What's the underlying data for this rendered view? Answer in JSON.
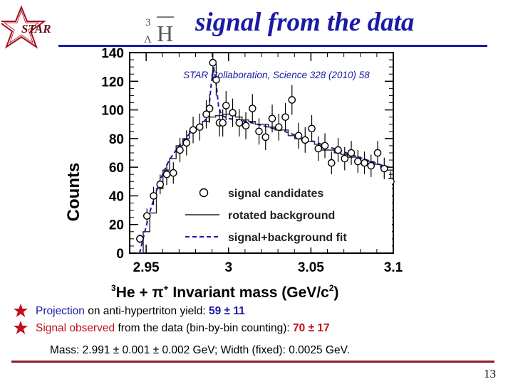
{
  "logo": {
    "text": "STAR"
  },
  "title": {
    "symbol_sup": "3",
    "symbol_sub": "Λ",
    "symbol_main": "H",
    "text": "signal from the data"
  },
  "citation": "STAR Collaboration, Science 328 (2010) 58",
  "chart_data": {
    "type": "scatter",
    "xlabel_prefix_sup": "3",
    "xlabel_he": "He + π",
    "xlabel_pi_sup": "+",
    "xlabel_rest": " Invariant mass (GeV/c",
    "xlabel_c_sup": "2",
    "xlabel_end": ")",
    "ylabel": "Counts",
    "xlim": [
      2.94,
      3.1
    ],
    "ylim": [
      0,
      140
    ],
    "xticks": [
      2.95,
      3.0,
      3.05,
      3.1
    ],
    "xtick_labels": [
      "2.95",
      "3",
      "3.05",
      "3.1"
    ],
    "yticks": [
      0,
      20,
      40,
      60,
      80,
      100,
      120,
      140
    ],
    "ytick_labels": [
      "0",
      "20",
      "40",
      "60",
      "80",
      "100",
      "120",
      "140"
    ],
    "legend": {
      "placement": "center-right",
      "entries": [
        "signal candidates",
        "rotated background",
        "signal+background fit"
      ]
    },
    "series": [
      {
        "name": "signal candidates",
        "style": "open circles with error bars",
        "x": [
          2.9462,
          2.9505,
          2.9545,
          2.9585,
          2.9625,
          2.9665,
          2.9705,
          2.9745,
          2.9785,
          2.9825,
          2.9865,
          2.9885,
          2.9905,
          2.9925,
          2.9945,
          2.9965,
          2.9985,
          3.0025,
          3.0065,
          3.0105,
          3.0145,
          3.0185,
          3.0225,
          3.0265,
          3.0305,
          3.0345,
          3.0385,
          3.0425,
          3.0465,
          3.0505,
          3.0545,
          3.0585,
          3.0625,
          3.0665,
          3.0705,
          3.0745,
          3.0785,
          3.0825,
          3.0865,
          3.0905,
          3.0945,
          3.0985
        ],
        "y": [
          10,
          26,
          40,
          48,
          55,
          56,
          72,
          77,
          86,
          88,
          97,
          101,
          133,
          121,
          91,
          91,
          103,
          98,
          91,
          89,
          101,
          85,
          81,
          94,
          88,
          95,
          107,
          82,
          79,
          87,
          73,
          75,
          63,
          72,
          66,
          70,
          64,
          63,
          61,
          70,
          59,
          50
        ]
      },
      {
        "name": "rotated background",
        "style": "step line",
        "x": [
          2.9442,
          2.9482,
          2.9522,
          2.9562,
          2.9602,
          2.9642,
          2.9682,
          2.9722,
          2.9762,
          2.9802,
          2.9842,
          2.9882,
          2.9922,
          2.9962,
          3.0002,
          3.0042,
          3.0082,
          3.0122,
          3.0162,
          3.0202,
          3.0242,
          3.0282,
          3.0322,
          3.0362,
          3.0402,
          3.0442,
          3.0482,
          3.0522,
          3.0562,
          3.0602,
          3.0642,
          3.0682,
          3.0722,
          3.0762,
          3.0802,
          3.0842,
          3.0882,
          3.0922,
          3.0962,
          3.1002
        ],
        "y": [
          0,
          15,
          28,
          45,
          58,
          66,
          75,
          80,
          85,
          88,
          92,
          95,
          96,
          97,
          97,
          95,
          93,
          92,
          90,
          90,
          88,
          86,
          86,
          82,
          80,
          79,
          78,
          76,
          72,
          72,
          70,
          69,
          67,
          67,
          64,
          64,
          62,
          60,
          58,
          58
        ]
      },
      {
        "name": "signal+background fit",
        "style": "dashed line",
        "x": [
          2.946,
          2.952,
          2.958,
          2.964,
          2.97,
          2.976,
          2.98,
          2.984,
          2.986,
          2.988,
          2.9895,
          2.991,
          2.9925,
          2.994,
          2.996,
          3.0,
          3.006,
          3.014,
          3.024,
          3.034,
          3.044,
          3.054,
          3.064,
          3.074,
          3.084,
          3.094,
          3.098
        ],
        "y": [
          0,
          28,
          50,
          65,
          75,
          83,
          87,
          91,
          93,
          100,
          118,
          130,
          118,
          102,
          96,
          94,
          93,
          91,
          88,
          85,
          81,
          77,
          73,
          69,
          65,
          61,
          60
        ]
      }
    ]
  },
  "bullets": [
    {
      "a": "Projection",
      "b": " on anti-hypertriton yield: ",
      "c": "59 ± 11"
    },
    {
      "a": "Signal observed",
      "b": " from the data (bin-by-bin counting): ",
      "c": "70 ± 17"
    }
  ],
  "mass_line": "Mass: 2.991 ± 0.001 ± 0.002 GeV; Width (fixed): 0.0025 GeV.",
  "page_number": "13",
  "colors": {
    "title": "#1a1aa6",
    "accent_red": "#c0101a",
    "rule_bottom": "#8c1a28",
    "fit": "#1a1aa6"
  }
}
